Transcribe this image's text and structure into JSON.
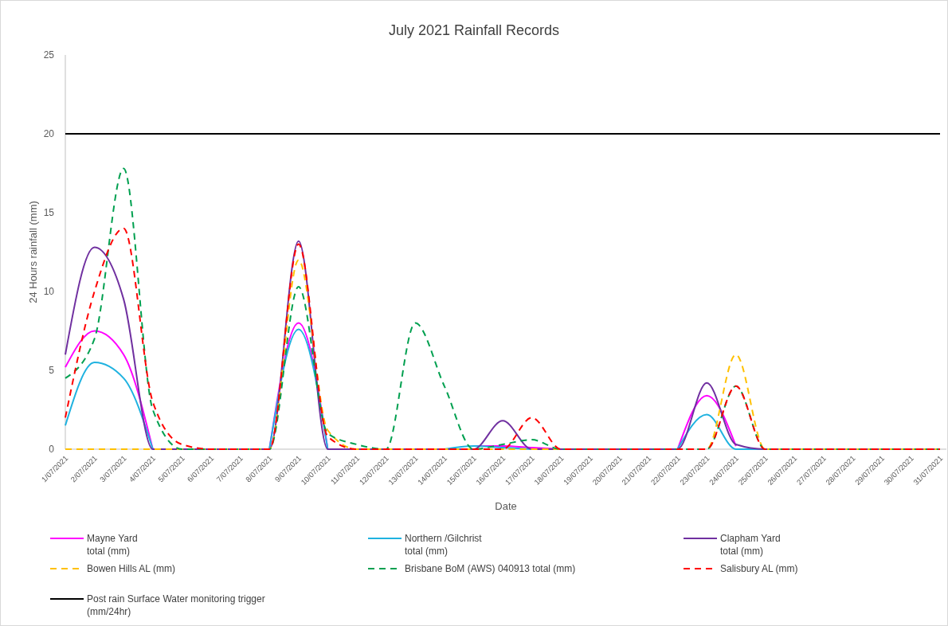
{
  "chart_data": {
    "type": "line",
    "title": "July 2021 Rainfall Records",
    "xlabel": "Date",
    "ylabel": "24 Hours rainfall (mm)",
    "categories": [
      "1/07/2021",
      "2/07/2021",
      "3/07/2021",
      "4/07/2021",
      "5/07/2021",
      "6/07/2021",
      "7/07/2021",
      "8/07/2021",
      "9/07/2021",
      "10/07/2021",
      "11/07/2021",
      "12/07/2021",
      "13/07/2021",
      "14/07/2021",
      "15/07/2021",
      "16/07/2021",
      "17/07/2021",
      "18/07/2021",
      "19/07/2021",
      "20/07/2021",
      "21/07/2021",
      "22/07/2021",
      "23/07/2021",
      "24/07/2021",
      "25/07/2021",
      "26/07/2021",
      "27/07/2021",
      "28/07/2021",
      "29/07/2021",
      "30/07/2021",
      "31/07/2021"
    ],
    "series": [
      {
        "name": "Mayne Yard\ntotal (mm)",
        "color": "#ff00ff",
        "line_style": "solid",
        "values": [
          5.2,
          7.5,
          6,
          0,
          null,
          null,
          null,
          0,
          8,
          0,
          null,
          null,
          null,
          null,
          0.2,
          0.2,
          0.1,
          0,
          null,
          null,
          null,
          0,
          3.4,
          0.2,
          null,
          null,
          null,
          null,
          null,
          null,
          null
        ]
      },
      {
        "name": "Northern  /Gilchrist\ntotal (mm)",
        "color": "#1fb2e0",
        "line_style": "solid",
        "values": [
          1.5,
          5.5,
          4.5,
          0,
          null,
          null,
          null,
          0,
          7.6,
          0,
          null,
          null,
          null,
          0,
          0.2,
          0.1,
          0,
          null,
          null,
          null,
          null,
          0,
          2.2,
          0,
          0,
          null,
          null,
          null,
          null,
          null,
          null
        ]
      },
      {
        "name": "Clapham Yard\ntotal (mm)",
        "color": "#7030a0",
        "line_style": "solid",
        "values": [
          6,
          12.8,
          9.5,
          0,
          0,
          0,
          0,
          0,
          13.2,
          0,
          0,
          0,
          0,
          0,
          0,
          1.8,
          0,
          0,
          0,
          0,
          0,
          0,
          4.2,
          0.3,
          0,
          0,
          0,
          0,
          0,
          0,
          0
        ]
      },
      {
        "name": "Bowen Hills AL (mm)",
        "color": "#ffc000",
        "line_style": "dashed",
        "values": [
          0,
          0,
          0,
          0,
          0,
          0,
          0,
          0,
          12,
          1.2,
          0,
          0,
          0,
          0,
          0,
          0,
          0,
          0,
          0,
          0,
          0,
          0,
          0,
          6,
          0,
          0,
          0,
          0,
          0,
          0,
          0
        ]
      },
      {
        "name": "Brisbane BoM (AWS) 040913 total (mm)",
        "color": "#00a050",
        "line_style": "dashed",
        "values": [
          4.5,
          7,
          17.8,
          2.5,
          0,
          0,
          0,
          0,
          10.3,
          1,
          0.3,
          0,
          8,
          4,
          0,
          0.3,
          0.6,
          0,
          0,
          0,
          0,
          0,
          0,
          4,
          0,
          0,
          0,
          0,
          0,
          0,
          0
        ]
      },
      {
        "name": "Salisbury AL (mm)",
        "color": "#ff0000",
        "line_style": "dashed",
        "values": [
          2,
          10,
          14,
          3,
          0.3,
          0,
          0,
          0,
          13,
          0.8,
          0,
          0,
          0,
          0,
          0,
          0,
          2,
          0,
          0,
          0,
          0,
          0,
          0,
          4,
          0,
          0,
          0,
          0,
          0,
          0,
          0
        ]
      },
      {
        "name": "Post rain Surface Water monitoring trigger\n(mm/24hr)",
        "color": "#000000",
        "line_style": "solid",
        "values": [
          20,
          20,
          20,
          20,
          20,
          20,
          20,
          20,
          20,
          20,
          20,
          20,
          20,
          20,
          20,
          20,
          20,
          20,
          20,
          20,
          20,
          20,
          20,
          20,
          20,
          20,
          20,
          20,
          20,
          20,
          20
        ]
      }
    ],
    "ylim": [
      0,
      25
    ],
    "yticks": [
      0,
      5,
      10,
      15,
      20,
      25
    ],
    "grid": false,
    "legend": "bottom"
  }
}
